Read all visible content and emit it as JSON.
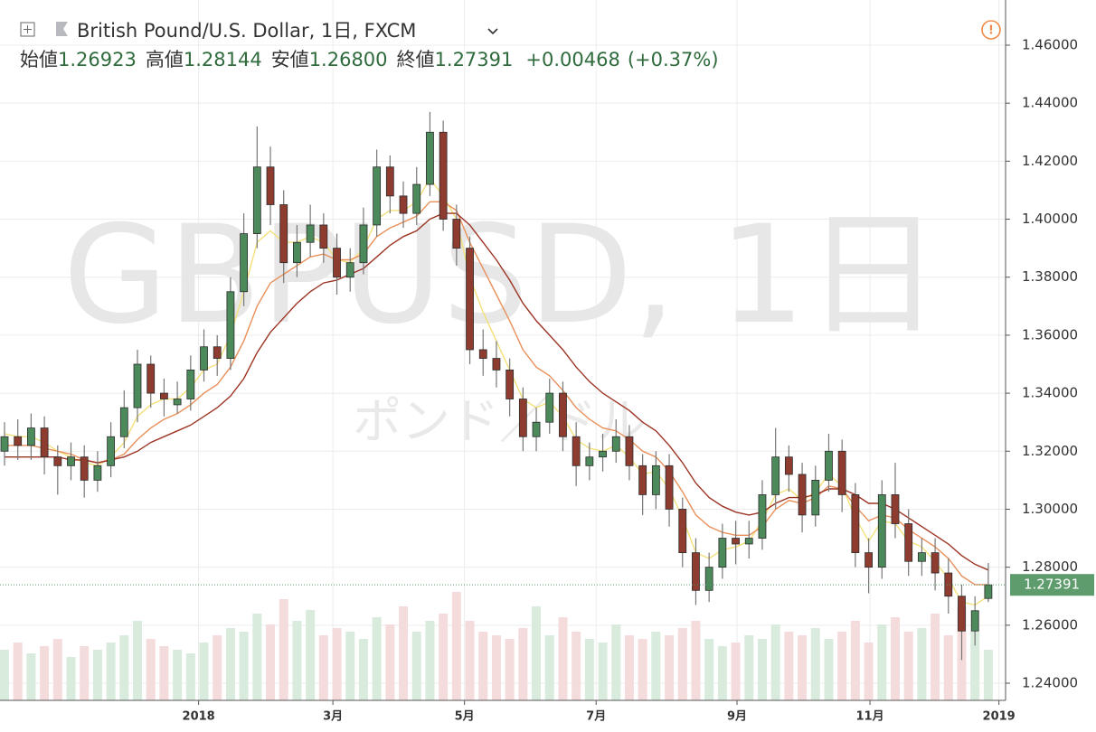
{
  "chart_data": {
    "type": "candlestick",
    "title": "British Pound/U.S. Dollar, 1日, FXCM",
    "ohlc_header": {
      "open_label": "始値",
      "open": "1.26923",
      "high_label": "高値",
      "high": "1.28144",
      "low_label": "安値",
      "low": "1.26800",
      "close_label": "終値",
      "close": "1.27391",
      "change": "+0.00468",
      "change_pct": "(+0.37%)"
    },
    "watermark": "GBPUSD, 1日",
    "watermark_sub": "ポンド／ドル",
    "up_color": "#4c8a5b",
    "down_color": "#8e3b30",
    "ylim": [
      1.23408,
      1.47558
    ],
    "yticks": [
      {
        "value": 1.24,
        "label": "1.24000"
      },
      {
        "value": 1.26,
        "label": "1.26000"
      },
      {
        "value": 1.28,
        "label": "1.28000"
      },
      {
        "value": 1.3,
        "label": "1.30000"
      },
      {
        "value": 1.32,
        "label": "1.32000"
      },
      {
        "value": 1.34,
        "label": "1.34000"
      },
      {
        "value": 1.36,
        "label": "1.36000"
      },
      {
        "value": 1.38,
        "label": "1.38000"
      },
      {
        "value": 1.4,
        "label": "1.40000"
      },
      {
        "value": 1.42,
        "label": "1.42000"
      },
      {
        "value": 1.44,
        "label": "1.44000"
      },
      {
        "value": 1.46,
        "label": "1.46000"
      }
    ],
    "xlim": [
      -0.34,
      75.3
    ],
    "xticks": [
      {
        "value": 14.6,
        "label": "2018"
      },
      {
        "value": 24.7,
        "label": "3月"
      },
      {
        "value": 34.6,
        "label": "5月"
      },
      {
        "value": 44.5,
        "label": "7月"
      },
      {
        "value": 55.1,
        "label": "9月"
      },
      {
        "value": 65.1,
        "label": "11月"
      },
      {
        "value": 74.8,
        "label": "2019"
      }
    ],
    "grid": true,
    "candles": [
      [
        1.32,
        1.33,
        1.315,
        1.325
      ],
      [
        1.325,
        1.331,
        1.317,
        1.322
      ],
      [
        1.322,
        1.333,
        1.317,
        1.328
      ],
      [
        1.328,
        1.332,
        1.312,
        1.318
      ],
      [
        1.318,
        1.322,
        1.305,
        1.315
      ],
      [
        1.315,
        1.323,
        1.31,
        1.318
      ],
      [
        1.318,
        1.322,
        1.304,
        1.31
      ],
      [
        1.31,
        1.32,
        1.306,
        1.315
      ],
      [
        1.315,
        1.33,
        1.311,
        1.325
      ],
      [
        1.325,
        1.341,
        1.321,
        1.335
      ],
      [
        1.335,
        1.355,
        1.33,
        1.35
      ],
      [
        1.35,
        1.353,
        1.335,
        1.34
      ],
      [
        1.34,
        1.345,
        1.332,
        1.338
      ],
      [
        1.336,
        1.344,
        1.333,
        1.338
      ],
      [
        1.338,
        1.353,
        1.334,
        1.348
      ],
      [
        1.348,
        1.362,
        1.344,
        1.356
      ],
      [
        1.356,
        1.36,
        1.346,
        1.352
      ],
      [
        1.352,
        1.38,
        1.348,
        1.375
      ],
      [
        1.375,
        1.402,
        1.37,
        1.395
      ],
      [
        1.395,
        1.432,
        1.39,
        1.418
      ],
      [
        1.418,
        1.425,
        1.398,
        1.405
      ],
      [
        1.405,
        1.41,
        1.378,
        1.385
      ],
      [
        1.385,
        1.398,
        1.38,
        1.392
      ],
      [
        1.392,
        1.405,
        1.387,
        1.398
      ],
      [
        1.398,
        1.402,
        1.385,
        1.39
      ],
      [
        1.39,
        1.395,
        1.374,
        1.38
      ],
      [
        1.38,
        1.39,
        1.375,
        1.385
      ],
      [
        1.385,
        1.404,
        1.381,
        1.398
      ],
      [
        1.398,
        1.424,
        1.394,
        1.418
      ],
      [
        1.418,
        1.422,
        1.402,
        1.408
      ],
      [
        1.408,
        1.413,
        1.397,
        1.402
      ],
      [
        1.402,
        1.418,
        1.398,
        1.412
      ],
      [
        1.412,
        1.437,
        1.408,
        1.43
      ],
      [
        1.43,
        1.434,
        1.396,
        1.4
      ],
      [
        1.4,
        1.405,
        1.384,
        1.39
      ],
      [
        1.39,
        1.394,
        1.35,
        1.355
      ],
      [
        1.355,
        1.362,
        1.346,
        1.352
      ],
      [
        1.352,
        1.358,
        1.342,
        1.348
      ],
      [
        1.348,
        1.352,
        1.332,
        1.338
      ],
      [
        1.338,
        1.342,
        1.32,
        1.325
      ],
      [
        1.325,
        1.335,
        1.32,
        1.33
      ],
      [
        1.33,
        1.345,
        1.326,
        1.34
      ],
      [
        1.34,
        1.344,
        1.32,
        1.325
      ],
      [
        1.325,
        1.33,
        1.308,
        1.315
      ],
      [
        1.315,
        1.323,
        1.31,
        1.318
      ],
      [
        1.318,
        1.326,
        1.313,
        1.32
      ],
      [
        1.32,
        1.331,
        1.316,
        1.325
      ],
      [
        1.325,
        1.329,
        1.31,
        1.315
      ],
      [
        1.315,
        1.319,
        1.298,
        1.305
      ],
      [
        1.305,
        1.32,
        1.3,
        1.315
      ],
      [
        1.315,
        1.319,
        1.294,
        1.3
      ],
      [
        1.3,
        1.304,
        1.28,
        1.285
      ],
      [
        1.285,
        1.29,
        1.267,
        1.272
      ],
      [
        1.272,
        1.285,
        1.268,
        1.28
      ],
      [
        1.28,
        1.295,
        1.276,
        1.29
      ],
      [
        1.29,
        1.296,
        1.281,
        1.288
      ],
      [
        1.288,
        1.296,
        1.283,
        1.29
      ],
      [
        1.29,
        1.31,
        1.286,
        1.305
      ],
      [
        1.305,
        1.328,
        1.3,
        1.318
      ],
      [
        1.318,
        1.322,
        1.306,
        1.312
      ],
      [
        1.312,
        1.316,
        1.292,
        1.298
      ],
      [
        1.298,
        1.315,
        1.294,
        1.31
      ],
      [
        1.31,
        1.326,
        1.306,
        1.32
      ],
      [
        1.32,
        1.324,
        1.299,
        1.305
      ],
      [
        1.305,
        1.309,
        1.28,
        1.285
      ],
      [
        1.285,
        1.29,
        1.271,
        1.28
      ],
      [
        1.28,
        1.31,
        1.276,
        1.305
      ],
      [
        1.305,
        1.316,
        1.29,
        1.295
      ],
      [
        1.295,
        1.3,
        1.277,
        1.282
      ],
      [
        1.282,
        1.29,
        1.277,
        1.285
      ],
      [
        1.285,
        1.29,
        1.272,
        1.278
      ],
      [
        1.278,
        1.283,
        1.264,
        1.27
      ],
      [
        1.27,
        1.274,
        1.248,
        1.258
      ],
      [
        1.258,
        1.27,
        1.253,
        1.265
      ],
      [
        1.26923,
        1.28144,
        1.268,
        1.27391
      ]
    ],
    "series": [
      {
        "color": "#f3e07a",
        "values": [
          1.326,
          1.325,
          1.325,
          1.323,
          1.32,
          1.318,
          1.316,
          1.315,
          1.318,
          1.323,
          1.332,
          1.336,
          1.338,
          1.338,
          1.342,
          1.348,
          1.35,
          1.36,
          1.375,
          1.392,
          1.396,
          1.392,
          1.392,
          1.394,
          1.392,
          1.386,
          1.385,
          1.39,
          1.4,
          1.403,
          1.403,
          1.406,
          1.414,
          1.408,
          1.4,
          1.38,
          1.368,
          1.358,
          1.348,
          1.338,
          1.335,
          1.337,
          1.332,
          1.324,
          1.321,
          1.32,
          1.322,
          1.318,
          1.312,
          1.313,
          1.307,
          1.297,
          1.285,
          1.283,
          1.286,
          1.287,
          1.289,
          1.296,
          1.305,
          1.307,
          1.303,
          1.306,
          1.312,
          1.308,
          1.297,
          1.289,
          1.296,
          1.295,
          1.289,
          1.287,
          1.282,
          1.276,
          1.268,
          1.267,
          1.27
        ]
      },
      {
        "color": "#e9905a",
        "values": [
          1.322,
          1.322,
          1.322,
          1.321,
          1.32,
          1.319,
          1.317,
          1.316,
          1.317,
          1.319,
          1.324,
          1.328,
          1.331,
          1.333,
          1.336,
          1.34,
          1.343,
          1.349,
          1.358,
          1.37,
          1.378,
          1.381,
          1.384,
          1.387,
          1.388,
          1.386,
          1.386,
          1.388,
          1.394,
          1.397,
          1.399,
          1.401,
          1.406,
          1.406,
          1.403,
          1.392,
          1.383,
          1.374,
          1.365,
          1.355,
          1.349,
          1.346,
          1.341,
          1.335,
          1.331,
          1.328,
          1.327,
          1.324,
          1.32,
          1.318,
          1.313,
          1.306,
          1.298,
          1.294,
          1.292,
          1.291,
          1.291,
          1.294,
          1.3,
          1.303,
          1.302,
          1.304,
          1.308,
          1.307,
          1.301,
          1.296,
          1.298,
          1.297,
          1.293,
          1.29,
          1.287,
          1.283,
          1.277,
          1.274,
          1.274
        ]
      },
      {
        "color": "#9c3424",
        "values": [
          1.318,
          1.318,
          1.318,
          1.318,
          1.318,
          1.317,
          1.317,
          1.316,
          1.317,
          1.318,
          1.32,
          1.323,
          1.325,
          1.327,
          1.329,
          1.332,
          1.335,
          1.339,
          1.345,
          1.354,
          1.361,
          1.366,
          1.371,
          1.375,
          1.378,
          1.379,
          1.381,
          1.383,
          1.387,
          1.391,
          1.394,
          1.396,
          1.4,
          1.402,
          1.402,
          1.398,
          1.392,
          1.386,
          1.379,
          1.371,
          1.365,
          1.36,
          1.355,
          1.349,
          1.344,
          1.34,
          1.337,
          1.334,
          1.33,
          1.327,
          1.322,
          1.316,
          1.309,
          1.304,
          1.301,
          1.299,
          1.298,
          1.299,
          1.302,
          1.304,
          1.304,
          1.305,
          1.307,
          1.307,
          1.305,
          1.302,
          1.302,
          1.3,
          1.297,
          1.294,
          1.291,
          1.288,
          1.284,
          1.281,
          1.279
        ]
      }
    ],
    "volume_lim": [
      0,
      100
    ],
    "volume": [
      14,
      16,
      13,
      15,
      17,
      12,
      15,
      14,
      16,
      18,
      22,
      17,
      15,
      14,
      13,
      16,
      18,
      20,
      19,
      24,
      21,
      28,
      22,
      25,
      18,
      20,
      19,
      17,
      23,
      21,
      26,
      19,
      22,
      24,
      30,
      22,
      19,
      18,
      17,
      20,
      26,
      18,
      23,
      19,
      17,
      16,
      21,
      18,
      17,
      19,
      18,
      20,
      22,
      17,
      15,
      16,
      18,
      17,
      21,
      19,
      18,
      20,
      17,
      19,
      22,
      16,
      21,
      23,
      19,
      20,
      24,
      18,
      26,
      19,
      14
    ]
  }
}
